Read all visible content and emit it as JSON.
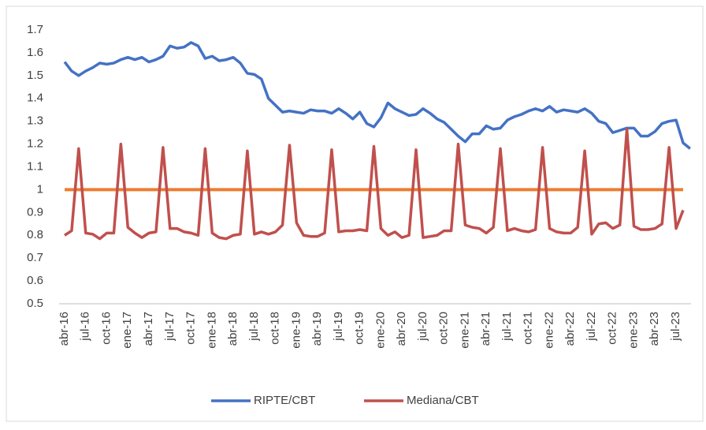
{
  "chart_data": {
    "type": "line",
    "categories": [
      "abr-16",
      null,
      null,
      "jul-16",
      null,
      null,
      "oct-16",
      null,
      null,
      "ene-17",
      null,
      null,
      "abr-17",
      null,
      null,
      "jul-17",
      null,
      null,
      "oct-17",
      null,
      null,
      "ene-18",
      null,
      null,
      "abr-18",
      null,
      null,
      "jul-18",
      null,
      null,
      "oct-18",
      null,
      null,
      "ene-19",
      null,
      null,
      "abr-19",
      null,
      null,
      "jul-19",
      null,
      null,
      "oct-19",
      null,
      null,
      "ene-20",
      null,
      null,
      "abr-20",
      null,
      null,
      "jul-20",
      null,
      null,
      "oct-20",
      null,
      null,
      "ene-21",
      null,
      null,
      "abr-21",
      null,
      null,
      "jul-21",
      null,
      null,
      "oct-21",
      null,
      null,
      "ene-22",
      null,
      null,
      "abr-22",
      null,
      null,
      "jul-22",
      null,
      null,
      "oct-22",
      null,
      null,
      "ene-23",
      null,
      null,
      "abr-23",
      null,
      null,
      "jul-23",
      null,
      null
    ],
    "series": [
      {
        "name": "RIPTE/CBT",
        "color": "#4472c4",
        "values": [
          1.56,
          1.52,
          1.5,
          1.52,
          1.535,
          1.555,
          1.55,
          1.555,
          1.57,
          1.58,
          1.57,
          1.58,
          1.56,
          1.57,
          1.585,
          1.63,
          1.62,
          1.625,
          1.645,
          1.63,
          1.575,
          1.585,
          1.565,
          1.57,
          1.58,
          1.555,
          1.51,
          1.505,
          1.485,
          1.4,
          1.37,
          1.34,
          1.345,
          1.34,
          1.335,
          1.35,
          1.345,
          1.345,
          1.335,
          1.355,
          1.335,
          1.31,
          1.34,
          1.29,
          1.275,
          1.315,
          1.38,
          1.355,
          1.34,
          1.325,
          1.33,
          1.355,
          1.335,
          1.31,
          1.295,
          1.265,
          1.235,
          1.21,
          1.245,
          1.245,
          1.28,
          1.265,
          1.27,
          1.305,
          1.32,
          1.33,
          1.345,
          1.355,
          1.345,
          1.365,
          1.34,
          1.35,
          1.345,
          1.34,
          1.355,
          1.335,
          1.3,
          1.29,
          1.25,
          1.26,
          1.27,
          1.27,
          1.235,
          1.235,
          1.255,
          1.29,
          1.3,
          1.305,
          1.205,
          1.18
        ]
      },
      {
        "name": "Mediana/CBT",
        "color": "#c0504d",
        "values": [
          0.8,
          0.82,
          1.18,
          0.81,
          0.805,
          0.785,
          0.81,
          0.81,
          1.2,
          0.835,
          0.81,
          0.79,
          0.81,
          0.815,
          1.185,
          0.83,
          0.83,
          0.815,
          0.81,
          0.8,
          1.18,
          0.81,
          0.79,
          0.785,
          0.8,
          0.805,
          1.17,
          0.805,
          0.815,
          0.805,
          0.815,
          0.845,
          1.195,
          0.855,
          0.8,
          0.795,
          0.795,
          0.81,
          1.175,
          0.815,
          0.82,
          0.82,
          0.825,
          0.82,
          1.19,
          0.83,
          0.8,
          0.815,
          0.79,
          0.8,
          1.175,
          0.79,
          0.795,
          0.8,
          0.82,
          0.82,
          1.2,
          0.845,
          0.835,
          0.83,
          0.81,
          0.835,
          1.18,
          0.82,
          0.83,
          0.82,
          0.815,
          0.825,
          1.185,
          0.83,
          0.815,
          0.81,
          0.81,
          0.835,
          1.17,
          0.805,
          0.85,
          0.855,
          0.83,
          0.845,
          1.265,
          0.84,
          0.825,
          0.825,
          0.83,
          0.85,
          1.185,
          0.83,
          0.91,
          null
        ]
      }
    ],
    "reference_line": {
      "value": 1,
      "color": "#ed7d31"
    },
    "ylim": [
      0.5,
      1.7
    ],
    "yticks": [
      0.5,
      0.6,
      0.7,
      0.8,
      0.9,
      1,
      1.1,
      1.2,
      1.3,
      1.4,
      1.5,
      1.6,
      1.7
    ],
    "grid": false,
    "legend": "bottom"
  }
}
